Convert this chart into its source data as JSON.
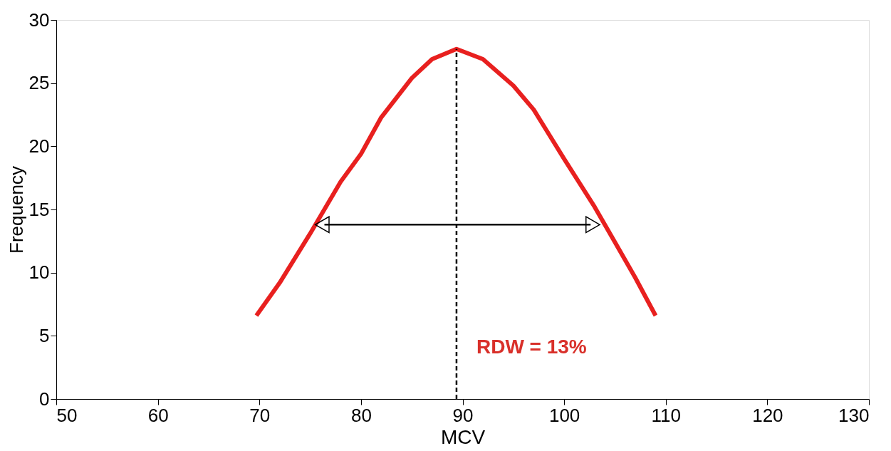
{
  "chart_data": {
    "type": "line",
    "xlabel": "MCV",
    "ylabel": "Frequency",
    "series": [
      {
        "color": "#e8201f",
        "x": [
          69.7,
          72,
          75,
          78,
          80,
          82,
          85,
          87,
          89.4,
          92,
          95,
          97,
          100,
          103,
          105,
          107,
          109
        ],
        "values": [
          6.6,
          9.2,
          13.1,
          17.2,
          19.4,
          22.3,
          25.4,
          26.9,
          27.7,
          26.9,
          24.8,
          22.9,
          19.0,
          15.2,
          12.4,
          9.6,
          6.6
        ]
      },
      {
        "color": "#000000",
        "x": [
          76.4,
          102.6
        ],
        "values": [
          13.8,
          13.8
        ],
        "marker": "triangle"
      }
    ],
    "xlim": [
      50,
      130
    ],
    "xticks": [
      50,
      60,
      70,
      80,
      90,
      100,
      110,
      120,
      130
    ],
    "ylim": [
      0,
      30
    ],
    "yticks": [
      0,
      5,
      10,
      15,
      20,
      25,
      30
    ],
    "ref_lines": [
      {
        "axis": "x",
        "value": 89.4,
        "line_style": "dashed",
        "color": "#000000"
      }
    ],
    "annotations": [
      "RDW = 13%"
    ],
    "grid": false,
    "marker": "none",
    "line_style": "solid"
  }
}
